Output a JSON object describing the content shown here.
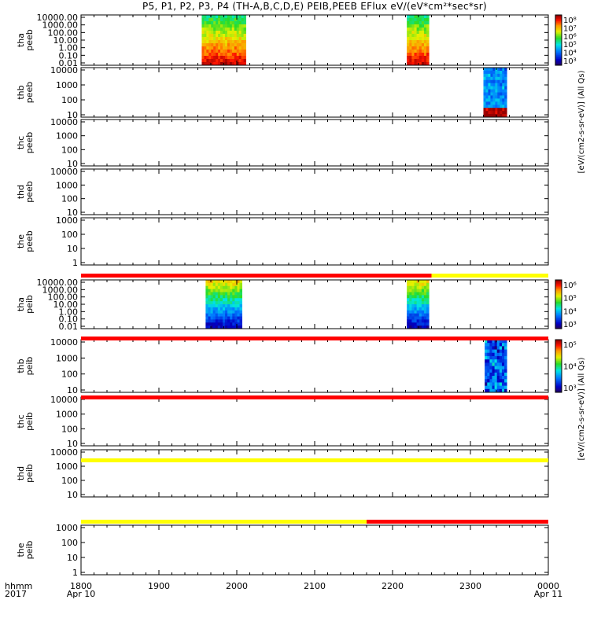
{
  "title": "P5, P1, P2, P3, P4 (TH-A,B,C,D,E) PEIB,PEEB EFlux eV/(eV*cm²*sec*sr)",
  "x_axis": {
    "row_label_1": "hhmm",
    "row_label_2": "2017",
    "ticks": [
      {
        "label": "1800",
        "sub": "Apr 10"
      },
      {
        "label": "1900",
        "sub": ""
      },
      {
        "label": "2000",
        "sub": ""
      },
      {
        "label": "2100",
        "sub": ""
      },
      {
        "label": "2200",
        "sub": ""
      },
      {
        "label": "2300",
        "sub": ""
      },
      {
        "label": "0000",
        "sub": "Apr 11"
      }
    ]
  },
  "colorbar_labels": {
    "electron": "[eV/(cm2-s-sr-eV)] (All Qs)",
    "ion": "[eV/(cm2-s-sr-eV)] (All Qs)"
  },
  "chart_data": {
    "type": "heatmap",
    "x_range_hhmm": [
      "1800",
      "2400"
    ],
    "panels": [
      {
        "id": "tha-peeb",
        "label": [
          "tha",
          "peeb"
        ],
        "yscale": "log",
        "yticks": [
          "10000.00",
          "1000.00",
          "100.00",
          "10.00",
          "1.00",
          "0.10",
          "0.01"
        ],
        "colorbar": {
          "ticks": [
            "10⁸",
            "10⁷",
            "10⁶",
            "10⁵",
            "10⁴",
            "10³"
          ]
        },
        "blocks": [
          {
            "start": "1933",
            "end": "1967"
          },
          {
            "start": "2171",
            "end": "2188"
          }
        ]
      },
      {
        "id": "thb-peeb",
        "label": [
          "thb",
          "peeb"
        ],
        "yscale": "log",
        "yticks": [
          "10000",
          "1000",
          "100",
          "10"
        ],
        "blocks": [
          {
            "start": "2310",
            "end": "2328"
          }
        ]
      },
      {
        "id": "thc-peeb",
        "label": [
          "thc",
          "peeb"
        ],
        "yscale": "log",
        "yticks": [
          "10000",
          "1000",
          "100",
          "10"
        ],
        "blocks": []
      },
      {
        "id": "thd-peeb",
        "label": [
          "thd",
          "peeb"
        ],
        "yscale": "log",
        "yticks": [
          "10000",
          "1000",
          "100",
          "10"
        ],
        "blocks": []
      },
      {
        "id": "the-peeb",
        "label": [
          "the",
          "peeb"
        ],
        "yscale": "log",
        "yticks": [
          "1000",
          "100",
          "10",
          "1"
        ],
        "blocks": []
      },
      {
        "id": "tha-peib",
        "label": [
          "tha",
          "peib"
        ],
        "yscale": "log",
        "yticks": [
          "10000.00",
          "1000.00",
          "100.00",
          "10.00",
          "1.00",
          "0.10",
          "0.01"
        ],
        "colorbar": {
          "ticks": [
            "10⁶",
            "10⁵",
            "10⁴",
            "10³"
          ]
        },
        "blocks": [
          {
            "start": "1936",
            "end": "1964"
          },
          {
            "start": "2171",
            "end": "2188"
          }
        ]
      },
      {
        "id": "thb-peib",
        "label": [
          "thb",
          "peib"
        ],
        "yscale": "log",
        "yticks": [
          "10000",
          "1000",
          "100",
          "10"
        ],
        "colorbar": {
          "ticks": [
            "10⁵",
            "10⁴",
            "10³"
          ]
        },
        "blocks": [
          {
            "start": "2311",
            "end": "2328"
          }
        ]
      },
      {
        "id": "thc-peib",
        "label": [
          "thc",
          "peib"
        ],
        "yscale": "log",
        "yticks": [
          "10000",
          "1000",
          "100",
          "10"
        ],
        "blocks": []
      },
      {
        "id": "thd-peib",
        "label": [
          "thd",
          "peib"
        ],
        "yscale": "log",
        "yticks": [
          "10000",
          "1000",
          "100",
          "10"
        ],
        "blocks": []
      },
      {
        "id": "the-peib",
        "label": [
          "the",
          "peib"
        ],
        "yscale": "log",
        "yticks": [
          "1000",
          "100",
          "10",
          "1"
        ],
        "blocks": []
      }
    ],
    "mode_bars": [
      {
        "id": "bar-1",
        "segments": [
          {
            "start": "1800",
            "end": "2190",
            "color": "#ff0000"
          },
          {
            "start": "2190",
            "end": "2400",
            "color": "#ffff00"
          }
        ]
      },
      {
        "id": "bar-2",
        "segments": [
          {
            "start": "1800",
            "end": "2400",
            "color": "#ff0000"
          }
        ]
      },
      {
        "id": "bar-3",
        "segments": [
          {
            "start": "1800",
            "end": "2400",
            "color": "#ff0000"
          }
        ]
      },
      {
        "id": "bar-4",
        "segments": [
          {
            "start": "1800",
            "end": "2400",
            "color": "#ffff00"
          }
        ]
      },
      {
        "id": "bar-5",
        "segments": [
          {
            "start": "1800",
            "end": "2140",
            "color": "#ffff00"
          },
          {
            "start": "2140",
            "end": "2400",
            "color": "#ff0000"
          }
        ]
      }
    ]
  }
}
